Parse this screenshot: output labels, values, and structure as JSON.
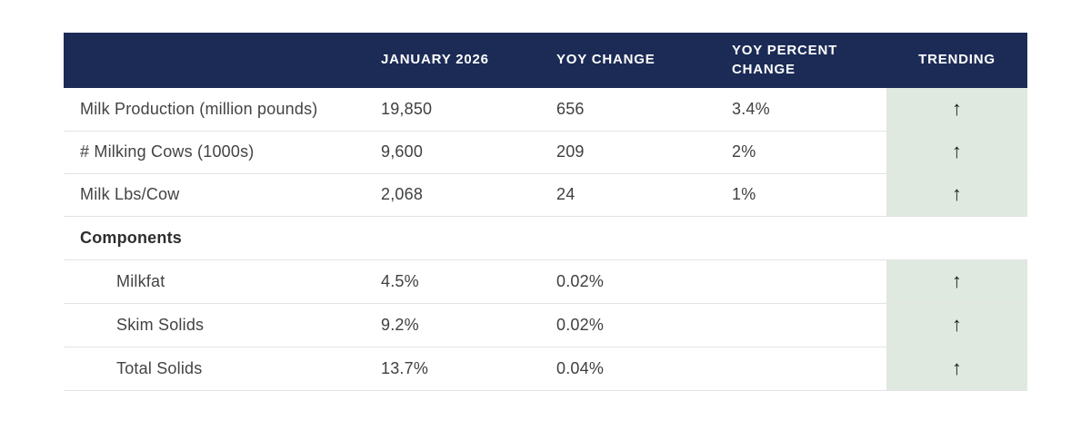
{
  "colors": {
    "header_bg": "#1b2b56",
    "header_text": "#ffffff",
    "trending_cell_bg": "#dfe9df",
    "body_text": "#3f4040",
    "divider": "#e3e3e3",
    "arrow": "#1f1f1f",
    "page_bg": "#ffffff"
  },
  "table": {
    "header": {
      "label": "",
      "january": "JANUARY 2026",
      "yoy_change": "YOY CHANGE",
      "yoy_percent_change": "YOY PERCENT\nCHANGE",
      "trending": "TRENDING"
    },
    "rows": [
      {
        "label": "Milk Production (million pounds)",
        "january": "19,850",
        "yoy_change": "656",
        "yoy_percent_change": "3.4%",
        "trending_icon": "↑"
      },
      {
        "label": "# Milking Cows (1000s)",
        "january": "9,600",
        "yoy_change": "209",
        "yoy_percent_change": "2%",
        "trending_icon": "↑"
      },
      {
        "label": "Milk Lbs/Cow",
        "january": "2,068",
        "yoy_change": "24",
        "yoy_percent_change": "1%",
        "trending_icon": "↑"
      }
    ],
    "section_label": "Components",
    "component_rows": [
      {
        "label": "Milkfat",
        "january": "4.5%",
        "yoy_change": "0.02%",
        "yoy_percent_change": "",
        "trending_icon": "↑"
      },
      {
        "label": "Skim Solids",
        "january": "9.2%",
        "yoy_change": "0.02%",
        "yoy_percent_change": "",
        "trending_icon": "↑"
      },
      {
        "label": "Total Solids",
        "january": "13.7%",
        "yoy_change": "0.04%",
        "yoy_percent_change": "",
        "trending_icon": "↑"
      }
    ]
  },
  "chart_data": {
    "type": "table",
    "columns": [
      "",
      "JANUARY 2026",
      "YOY CHANGE",
      "YOY PERCENT CHANGE",
      "TRENDING"
    ],
    "rows": [
      [
        "Milk Production (million pounds)",
        "19,850",
        "656",
        "3.4%",
        "up"
      ],
      [
        "# Milking Cows (1000s)",
        "9,600",
        "209",
        "2%",
        "up"
      ],
      [
        "Milk Lbs/Cow",
        "2,068",
        "24",
        "1%",
        "up"
      ],
      [
        "Components",
        "",
        "",
        "",
        ""
      ],
      [
        "Milkfat",
        "4.5%",
        "0.02%",
        "",
        "up"
      ],
      [
        "Skim Solids",
        "9.2%",
        "0.02%",
        "",
        "up"
      ],
      [
        "Total Solids",
        "13.7%",
        "0.04%",
        "",
        "up"
      ]
    ],
    "title": "",
    "notes": "TRENDING column cells have mint-green background with upward arrows; Components sub-rows are indented; YOY PERCENT CHANGE is blank for component rows"
  }
}
